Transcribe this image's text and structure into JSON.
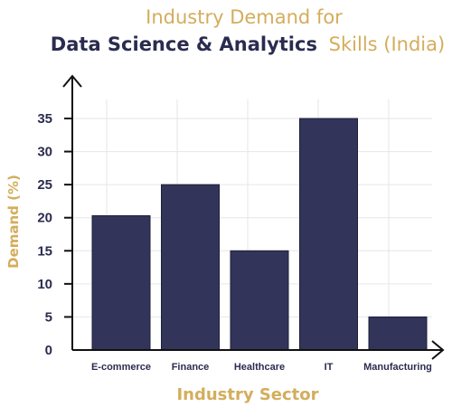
{
  "chart_data": {
    "type": "bar",
    "title_line1": "Industry Demand for",
    "title_line2_bold": "Data Science & Analytics",
    "title_line2_light": "Skills (India)",
    "xlabel": "Industry Sector",
    "ylabel": "Demand (%)",
    "categories": [
      "E-commerce",
      "Finance",
      "Healthcare",
      "IT",
      "Manufacturing"
    ],
    "values": [
      20.3,
      25,
      15,
      35,
      5
    ],
    "ylim": [
      0,
      40
    ],
    "yticks": [
      0,
      5,
      10,
      15,
      20,
      25,
      30,
      35
    ],
    "grid": true,
    "colors": {
      "bar": "#32345a",
      "accent": "#d4ad5c",
      "dark": "#2a2c4f",
      "axis": "#111111",
      "grid": "#e6e6e6"
    }
  }
}
